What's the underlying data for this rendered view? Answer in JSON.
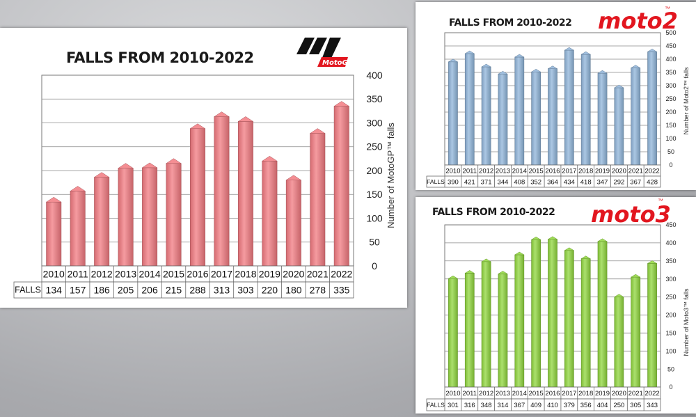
{
  "colors": {
    "motogp_bar": "#f27a80",
    "moto2_bar": "#8fb4d9",
    "moto3_bar": "#8fd63c",
    "moto_red": "#e2161f"
  },
  "logos": {
    "motogp": "MotoGP",
    "moto2": "moto2",
    "moto2_tm": "™",
    "moto3": "moto3",
    "moto3_tm": "™"
  },
  "chart_data": [
    {
      "id": "motogp",
      "type": "bar",
      "title": "FALLS FROM 2010-2022",
      "xlabel": "",
      "ylabel": "Number of MotoGP™ falls",
      "ylim": [
        0,
        400
      ],
      "yticks": [
        0,
        50,
        100,
        150,
        200,
        250,
        300,
        350,
        400
      ],
      "grid": true,
      "row_label": "FALLS",
      "categories": [
        "2010",
        "2011",
        "2012",
        "2013",
        "2014",
        "2015",
        "2016",
        "2017",
        "2018",
        "2019",
        "2020",
        "2021",
        "2022"
      ],
      "values": [
        134,
        157,
        186,
        205,
        206,
        215,
        288,
        313,
        303,
        220,
        180,
        278,
        335
      ]
    },
    {
      "id": "moto2",
      "type": "bar",
      "title": "FALLS FROM 2010-2022",
      "xlabel": "",
      "ylabel": "Number of Moto2™ falls",
      "ylim": [
        0,
        500
      ],
      "yticks": [
        0,
        50,
        100,
        150,
        200,
        250,
        300,
        350,
        400,
        450,
        500
      ],
      "grid": true,
      "row_label": "FALLS",
      "categories": [
        "2010",
        "2011",
        "2012",
        "2013",
        "2014",
        "2015",
        "2016",
        "2017",
        "2018",
        "2019",
        "2020",
        "2021",
        "2022"
      ],
      "values": [
        390,
        421,
        371,
        344,
        408,
        352,
        364,
        434,
        418,
        347,
        292,
        367,
        428
      ]
    },
    {
      "id": "moto3",
      "type": "bar",
      "title": "FALLS FROM 2010-2022",
      "xlabel": "",
      "ylabel": "Number of Moto3™ falls",
      "ylim": [
        0,
        450
      ],
      "yticks": [
        0,
        50,
        100,
        150,
        200,
        250,
        300,
        350,
        400,
        450
      ],
      "grid": true,
      "row_label": "FALLS",
      "categories": [
        "2010",
        "2011",
        "2012",
        "2013",
        "2014",
        "2015",
        "2016",
        "2017",
        "2018",
        "2019",
        "2020",
        "2021",
        "2022"
      ],
      "values": [
        301,
        316,
        348,
        314,
        367,
        409,
        410,
        379,
        356,
        404,
        250,
        305,
        343
      ]
    }
  ]
}
